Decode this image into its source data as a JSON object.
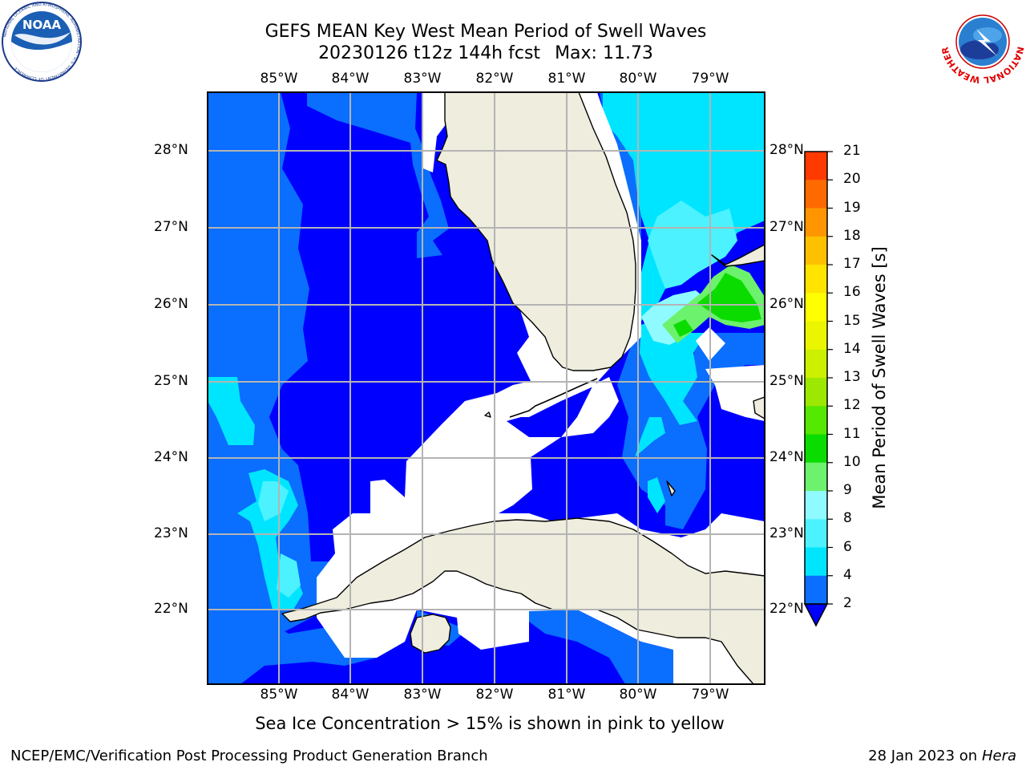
{
  "title": {
    "line1": "GEFS MEAN Key West Mean Period of Swell Waves",
    "line2_run": "20230126 t12z 144h fcst",
    "line2_max": "Max: 11.73"
  },
  "lon_labels": [
    "85°W",
    "84°W",
    "83°W",
    "82°W",
    "81°W",
    "80°W",
    "79°W"
  ],
  "lat_labels": [
    "28°N",
    "27°N",
    "26°N",
    "25°N",
    "24°N",
    "23°N",
    "22°N"
  ],
  "colorbar": {
    "title": "Mean Period of Swell Waves [s]",
    "levels": [
      "2",
      "4",
      "6",
      "8",
      "9",
      "10",
      "11",
      "12",
      "13",
      "14",
      "15",
      "16",
      "17",
      "18",
      "19",
      "20",
      "21"
    ],
    "colors": [
      "#0a6eff",
      "#00e5ff",
      "#4cf2ff",
      "#8ffaff",
      "#6cf26c",
      "#0bdc00",
      "#55e800",
      "#9ce800",
      "#cdf000",
      "#ecf500",
      "#ffff00",
      "#ffe400",
      "#ffc000",
      "#ff9600",
      "#ff6a00",
      "#ff3a00"
    ],
    "under_color": "#0000ff"
  },
  "map_colors": {
    "deep": "#0000ff",
    "p2": "#0a6eff",
    "p4": "#00e5ff",
    "p6": "#4cf2ff",
    "p8": "#8ffaff",
    "p9": "#6cf26c",
    "p10": "#0bdc00",
    "land": "#eeedde"
  },
  "logos": {
    "noaa_text": "NOAA",
    "noaa_ring": "NATIONAL OCEANIC AND ATMOSPHERIC ADMINISTRATION · U.S. DEPARTMENT OF COMMERCE",
    "nws_ring": "NATIONAL WEATHER SERVICE"
  },
  "note": "Sea Ice Concentration > 15% is shown in pink to yellow",
  "footer_left": "NCEP/EMC/Verification Post Processing Product Generation Branch",
  "footer_right_date": "28 Jan 2023 on",
  "footer_right_host": "Hera"
}
